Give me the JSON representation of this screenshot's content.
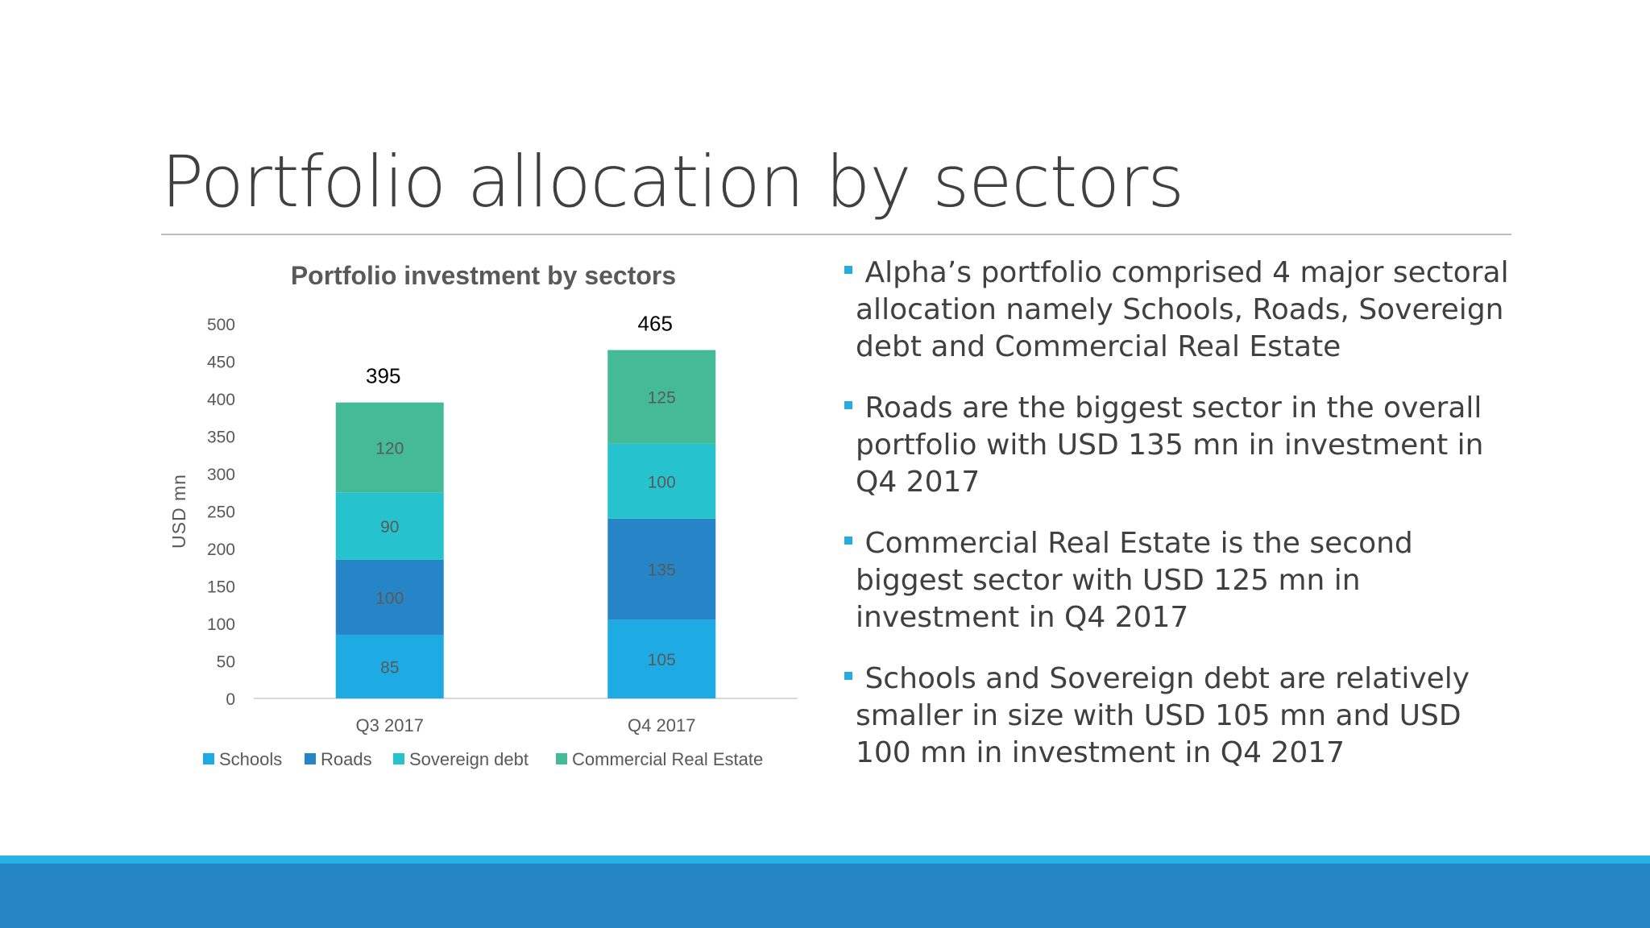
{
  "slide": {
    "title": "Portfolio allocation by sectors"
  },
  "bullets": [
    {
      "text": "Alpha’s portfolio comprised 4 major sectoral allocation namely Schools, Roads, Sovereign debt and Commercial Real Estate"
    },
    {
      "text": "Roads are the biggest sector in the overall portfolio with USD 135 mn in investment in Q4 2017"
    },
    {
      "text": "Commercial Real Estate is the second biggest sector with USD 125 mn in investment in Q4 2017"
    },
    {
      "text": "Schools and Sovereign debt are relatively smaller in size with USD 105 mn and USD 100 mn in investment in Q4 2017"
    }
  ],
  "colors": {
    "bullet_marker": "#29abe2",
    "footer_light": "#27b1e6",
    "footer_dark": "#2585c5"
  },
  "chart_data": {
    "type": "bar",
    "stacked": true,
    "title": "Portfolio investment by sectors",
    "xlabel": "",
    "ylabel": "USD mn",
    "ylim": [
      0,
      500
    ],
    "yticks": [
      0,
      50,
      100,
      150,
      200,
      250,
      300,
      350,
      400,
      450,
      500
    ],
    "categories": [
      "Q3 2017",
      "Q4 2017"
    ],
    "series": [
      {
        "name": "Schools",
        "values": [
          85,
          105
        ],
        "color": "#1eabe3"
      },
      {
        "name": "Roads",
        "values": [
          100,
          135
        ],
        "color": "#2585c7"
      },
      {
        "name": "Sovereign debt",
        "values": [
          90,
          100
        ],
        "color": "#26c2cd"
      },
      {
        "name": "Commercial Real Estate",
        "values": [
          120,
          125
        ],
        "color": "#44bb96"
      }
    ],
    "totals": [
      395,
      465
    ],
    "grid": false,
    "legend": "bottom"
  }
}
